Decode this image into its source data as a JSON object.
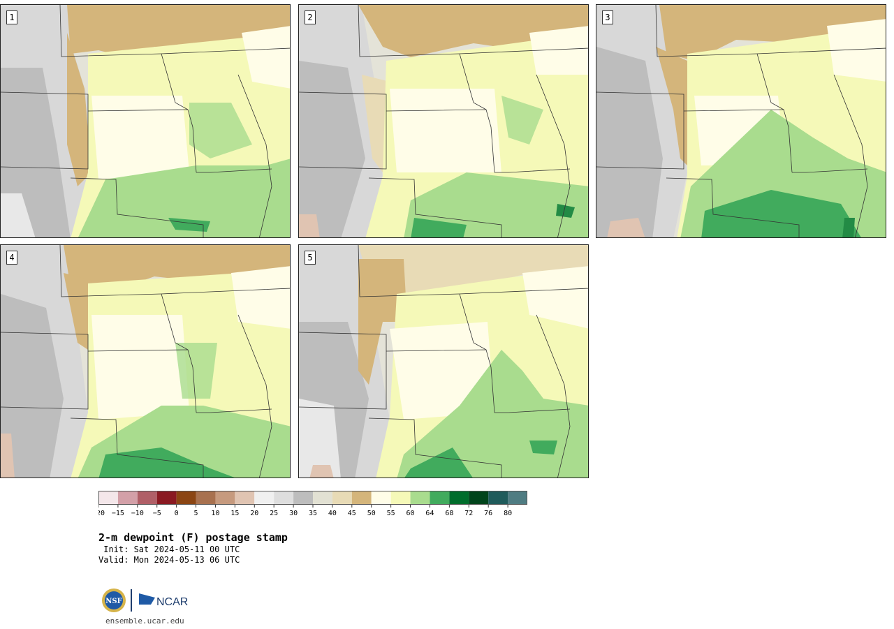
{
  "title": "2-m dewpoint (F) postage stamp",
  "init": " Init: Sat 2024-05-11 00 UTC",
  "valid": "Valid: Mon 2024-05-13 06 UTC",
  "url": "ensemble.ucar.edu",
  "logos": {
    "nsf_text": "NSF",
    "ncar_text": "NCAR"
  },
  "panels": [
    {
      "label": "1"
    },
    {
      "label": "2"
    },
    {
      "label": "3"
    },
    {
      "label": "4"
    },
    {
      "label": "5"
    }
  ],
  "colorbar": {
    "ticks": [
      "−20",
      "−15",
      "−10",
      "−5",
      "0",
      "5",
      "10",
      "15",
      "20",
      "25",
      "30",
      "35",
      "40",
      "45",
      "50",
      "55",
      "60",
      "64",
      "68",
      "72",
      "76",
      "80"
    ],
    "colors": [
      "#f4e7ea",
      "#d3a0a8",
      "#b05f67",
      "#8a1a22",
      "#8b4513",
      "#a8714f",
      "#c69a7e",
      "#e0c4b2",
      "#f0f0f0",
      "#dedede",
      "#bdbdbd",
      "#e2e1d3",
      "#e8dbb6",
      "#d4b57b",
      "#fffde8",
      "#f5f9b8",
      "#a9dc8e",
      "#41ab5d",
      "#006d2c",
      "#00441b",
      "#1f5b5b",
      "#4f7c82"
    ]
  },
  "colors": {
    "gray_dark": "#bdbdbd",
    "gray_mid": "#d8d8d8",
    "gray_light": "#e4e3d8",
    "tan_light": "#e8dbb6",
    "tan": "#d4b57b",
    "cream": "#fffde8",
    "pale_yellow": "#f5f9b8",
    "light_green": "#a9dc8e",
    "green": "#41ab5d",
    "dark_green": "#238b45",
    "pink_brown": "#e0c4b2",
    "border": "#333333"
  }
}
